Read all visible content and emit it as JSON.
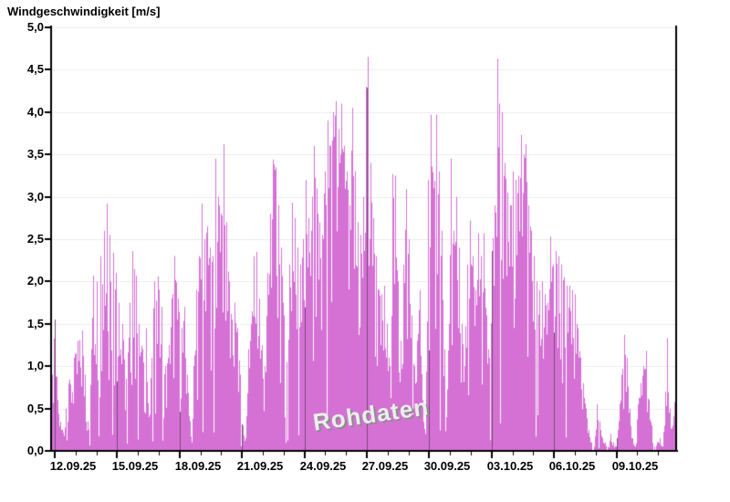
{
  "chart_data": {
    "type": "area",
    "title": "Windgeschwindigkeit [m/s]",
    "unit": "m/s",
    "watermark": "Rohdaten",
    "ylim": [
      0,
      5
    ],
    "y_tick_labels": [
      "5,0",
      "4,5",
      "4,0",
      "3,5",
      "3,0",
      "2,5",
      "2,0",
      "1,5",
      "1,0",
      "0,5",
      "0,0"
    ],
    "y_tick_values": [
      5.0,
      4.5,
      4.0,
      3.5,
      3.0,
      2.5,
      2.0,
      1.5,
      1.0,
      0.5,
      0.0
    ],
    "x_tick_labels": [
      "12.09.25",
      "15.09.25",
      "18.09.25",
      "21.09.25",
      "24.09.25",
      "27.09.25",
      "30.09.25",
      "03.10.25",
      "06.10.25",
      "09.10.25"
    ],
    "x_tick_days": [
      0,
      3,
      6,
      9,
      12,
      15,
      18,
      21,
      24,
      27
    ],
    "x_minor_step_days": 1,
    "x_total_days": 29.9,
    "grid": {
      "horizontal": true,
      "vertical_on_major_ticks": true
    },
    "legend_position": "none",
    "noise_seed": 11,
    "colors": {
      "fill": "#d571d5",
      "grid_h": "#ececec",
      "grid_v": "rgba(45,45,45,0.55)",
      "axis": "#000000",
      "label": "#000000",
      "watermark": "#ededed",
      "watermark_shadow": "#8d8d8d",
      "background": "#ffffff"
    },
    "series": [
      {
        "name": "Rohdaten",
        "points": [
          [
            -0.13,
            0.9
          ],
          [
            0,
            1.55
          ],
          [
            0.13,
            0.6
          ],
          [
            0.35,
            0.25
          ],
          [
            0.53,
            0.5
          ],
          [
            0.66,
            0.8
          ],
          [
            0.92,
            1.1
          ],
          [
            1.1,
            1.3
          ],
          [
            1.31,
            1.42
          ],
          [
            1.45,
            0.9
          ],
          [
            1.58,
            0.35
          ],
          [
            1.75,
            1.2
          ],
          [
            1.84,
            2.07
          ],
          [
            2.02,
            2.0
          ],
          [
            2.19,
            2.3
          ],
          [
            2.37,
            2.6
          ],
          [
            2.5,
            2.92
          ],
          [
            2.63,
            2.55
          ],
          [
            2.8,
            2.34
          ],
          [
            2.94,
            2.1
          ],
          [
            3.07,
            1.75
          ],
          [
            3.25,
            1.5
          ],
          [
            3.42,
            0.85
          ],
          [
            3.6,
            1.75
          ],
          [
            3.73,
            2.36
          ],
          [
            3.9,
            2.07
          ],
          [
            4.03,
            1.5
          ],
          [
            4.21,
            1.2
          ],
          [
            4.39,
            1.45
          ],
          [
            4.52,
            0.4
          ],
          [
            4.65,
            1.1
          ],
          [
            4.78,
            2.0
          ],
          [
            4.95,
            2.06
          ],
          [
            5.13,
            1.7
          ],
          [
            5.3,
            1.0
          ],
          [
            5.48,
            1.25
          ],
          [
            5.61,
            1.8
          ],
          [
            5.75,
            2.3
          ],
          [
            5.92,
            1.8
          ],
          [
            6.1,
            1.45
          ],
          [
            6.23,
            1.7
          ],
          [
            6.36,
            0.9
          ],
          [
            6.49,
            0.35
          ],
          [
            6.58,
            0.1
          ],
          [
            6.67,
            1.0
          ],
          [
            6.8,
            1.9
          ],
          [
            6.93,
            2.3
          ],
          [
            7.06,
            2.92
          ],
          [
            7.19,
            2.5
          ],
          [
            7.32,
            2.65
          ],
          [
            7.45,
            2.4
          ],
          [
            7.58,
            2.3
          ],
          [
            7.72,
            3.45
          ],
          [
            7.85,
            3.0
          ],
          [
            7.98,
            2.8
          ],
          [
            8.12,
            3.62
          ],
          [
            8.25,
            2.7
          ],
          [
            8.38,
            2.0
          ],
          [
            8.51,
            1.55
          ],
          [
            8.64,
            1.75
          ],
          [
            8.77,
            1.45
          ],
          [
            8.9,
            0.9
          ],
          [
            9.03,
            0.3
          ],
          [
            9.16,
            0.15
          ],
          [
            9.29,
            1.2
          ],
          [
            9.43,
            1.5
          ],
          [
            9.56,
            2.3
          ],
          [
            9.69,
            2.35
          ],
          [
            9.82,
            1.8
          ],
          [
            9.95,
            1.25
          ],
          [
            10.08,
            1.0
          ],
          [
            10.21,
            2.1
          ],
          [
            10.34,
            2.8
          ],
          [
            10.47,
            3.44
          ],
          [
            10.6,
            3.35
          ],
          [
            10.74,
            2.9
          ],
          [
            10.87,
            2.4
          ],
          [
            11.0,
            1.6
          ],
          [
            11.13,
            1.05
          ],
          [
            11.26,
            2.2
          ],
          [
            11.39,
            2.93
          ],
          [
            11.53,
            2.75
          ],
          [
            11.66,
            2.4
          ],
          [
            11.79,
            2.2
          ],
          [
            11.92,
            2.5
          ],
          [
            12.05,
            3.2
          ],
          [
            12.18,
            2.75
          ],
          [
            12.31,
            2.6
          ],
          [
            12.45,
            3.6
          ],
          [
            12.58,
            3.1
          ],
          [
            12.71,
            2.7
          ],
          [
            12.84,
            2.55
          ],
          [
            12.97,
            3.3
          ],
          [
            13.1,
            3.9
          ],
          [
            13.24,
            3.6
          ],
          [
            13.37,
            4.0
          ],
          [
            13.5,
            4.13
          ],
          [
            13.63,
            3.8
          ],
          [
            13.76,
            4.1
          ],
          [
            13.89,
            3.6
          ],
          [
            14.03,
            3.3
          ],
          [
            14.16,
            2.9
          ],
          [
            14.29,
            4.05
          ],
          [
            14.42,
            3.3
          ],
          [
            14.55,
            2.7
          ],
          [
            14.68,
            2.55
          ],
          [
            14.81,
            3.0
          ],
          [
            14.95,
            4.3
          ],
          [
            15.03,
            4.65
          ],
          [
            15.17,
            3.4
          ],
          [
            15.3,
            2.75
          ],
          [
            15.43,
            2.3
          ],
          [
            15.56,
            1.9
          ],
          [
            15.69,
            1.85
          ],
          [
            15.82,
            1.95
          ],
          [
            15.95,
            1.5
          ],
          [
            16.09,
            1.0
          ],
          [
            16.22,
            3.27
          ],
          [
            16.35,
            3.25
          ],
          [
            16.48,
            2.0
          ],
          [
            16.61,
            1.3
          ],
          [
            16.74,
            2.2
          ],
          [
            16.88,
            3.09
          ],
          [
            17.01,
            2.5
          ],
          [
            17.14,
            1.6
          ],
          [
            17.27,
            1.0
          ],
          [
            17.4,
            1.3
          ],
          [
            17.53,
            1.9
          ],
          [
            17.67,
            0.6
          ],
          [
            17.8,
            0.2
          ],
          [
            17.93,
            3.2
          ],
          [
            18.06,
            3.97
          ],
          [
            18.19,
            3.1
          ],
          [
            18.32,
            3.97
          ],
          [
            18.45,
            3.3
          ],
          [
            18.59,
            2.6
          ],
          [
            18.72,
            1.2
          ],
          [
            18.81,
            0.4
          ],
          [
            18.94,
            1.5
          ],
          [
            19.03,
            3.45
          ],
          [
            19.16,
            2.6
          ],
          [
            19.29,
            3.0
          ],
          [
            19.42,
            2.4
          ],
          [
            19.55,
            1.5
          ],
          [
            19.68,
            1.0
          ],
          [
            19.81,
            2.2
          ],
          [
            19.95,
            2.72
          ],
          [
            20.08,
            2.3
          ],
          [
            20.21,
            1.9
          ],
          [
            20.34,
            2.57
          ],
          [
            20.47,
            2.3
          ],
          [
            20.6,
            2.57
          ],
          [
            20.74,
            1.6
          ],
          [
            20.87,
            1.1
          ],
          [
            21.0,
            2.36
          ],
          [
            21.13,
            2.9
          ],
          [
            21.27,
            4.63
          ],
          [
            21.38,
            4.1
          ],
          [
            21.48,
            4.0
          ],
          [
            21.61,
            3.4
          ],
          [
            21.74,
            3.05
          ],
          [
            21.88,
            2.9
          ],
          [
            22.01,
            3.3
          ],
          [
            22.14,
            3.2
          ],
          [
            22.27,
            3.25
          ],
          [
            22.4,
            3.73
          ],
          [
            22.53,
            3.5
          ],
          [
            22.62,
            3.62
          ],
          [
            22.75,
            2.9
          ],
          [
            22.88,
            2.6
          ],
          [
            23.02,
            2.3
          ],
          [
            23.15,
            2.0
          ],
          [
            23.28,
            1.9
          ],
          [
            23.41,
            2.0
          ],
          [
            23.54,
            1.85
          ],
          [
            23.67,
            1.75
          ],
          [
            23.81,
            2.53
          ],
          [
            23.94,
            2.2
          ],
          [
            24.07,
            2.36
          ],
          [
            24.2,
            2.3
          ],
          [
            24.33,
            2.2
          ],
          [
            24.46,
            2.05
          ],
          [
            24.6,
            1.95
          ],
          [
            24.73,
            1.95
          ],
          [
            24.86,
            1.9
          ],
          [
            25.0,
            1.85
          ],
          [
            25.12,
            1.45
          ],
          [
            25.25,
            1.1
          ],
          [
            25.38,
            0.8
          ],
          [
            25.52,
            0.5
          ],
          [
            25.65,
            0.25
          ],
          [
            25.78,
            0.1
          ],
          [
            25.91,
            0.05
          ],
          [
            26.04,
            0.55
          ],
          [
            26.17,
            0.35
          ],
          [
            26.31,
            0.15
          ],
          [
            26.44,
            0.1
          ],
          [
            26.57,
            0.05
          ],
          [
            26.7,
            0.2
          ],
          [
            26.83,
            0.1
          ],
          [
            26.96,
            0.05
          ],
          [
            27.1,
            0.35
          ],
          [
            27.23,
            0.9
          ],
          [
            27.36,
            1.37
          ],
          [
            27.49,
            1.1
          ],
          [
            27.62,
            0.5
          ],
          [
            27.75,
            0.15
          ],
          [
            27.88,
            0.05
          ],
          [
            28.02,
            0.55
          ],
          [
            28.15,
            0.8
          ],
          [
            28.28,
            1.0
          ],
          [
            28.41,
            1.18
          ],
          [
            28.54,
            0.6
          ],
          [
            28.67,
            0.3
          ],
          [
            28.81,
            0.05
          ],
          [
            28.94,
            0.1
          ],
          [
            29.07,
            0.15
          ],
          [
            29.2,
            0.05
          ],
          [
            29.33,
            0.7
          ],
          [
            29.42,
            1.33
          ],
          [
            29.55,
            0.5
          ],
          [
            29.68,
            0.3
          ],
          [
            29.81,
            1.05
          ]
        ]
      }
    ]
  }
}
